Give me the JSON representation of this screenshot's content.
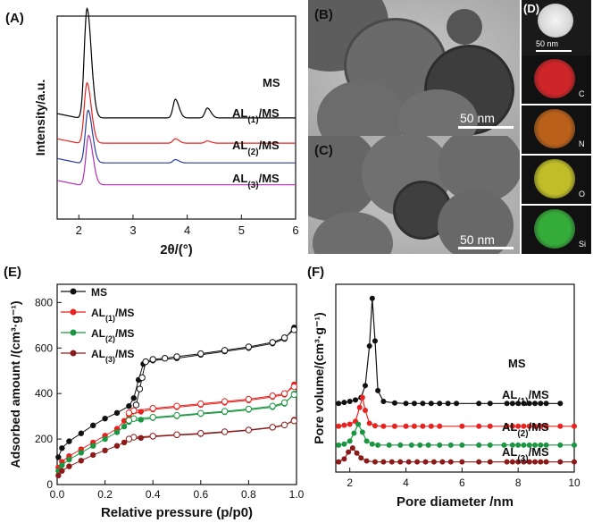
{
  "panels": {
    "A": "(A)",
    "B": "(B)",
    "C": "(C)",
    "D": "(D)",
    "E": "(E)",
    "F": "(F)"
  },
  "tem": {
    "b_scale": "50 nm",
    "c_scale": "50 nm",
    "d_scale": "50 nm",
    "element_labels": [
      "C",
      "N",
      "O",
      "Si"
    ],
    "map_colors": [
      "#d8262a",
      "#c2651a",
      "#c9c62a",
      "#37b33c"
    ]
  },
  "chart_data": [
    {
      "type": "line",
      "panel": "A",
      "xlabel": "2θ/(°)",
      "ylabel": "Intensity/a.u.",
      "xlim": [
        1.6,
        6.0
      ],
      "xticks": [
        2,
        3,
        4,
        5,
        6
      ],
      "series": [
        {
          "name": "MS",
          "color": "#000000",
          "baseline": 0.35,
          "peaks": [
            [
              2.15,
              1.0
            ],
            [
              3.78,
              0.17
            ],
            [
              4.37,
              0.09
            ]
          ]
        },
        {
          "name": "AL(1)/MS",
          "color": "#e8231f",
          "baseline": 0.12,
          "peaks": [
            [
              2.15,
              0.55
            ],
            [
              3.78,
              0.04
            ],
            [
              4.37,
              0.02
            ]
          ]
        },
        {
          "name": "AL(2)/MS",
          "color": "#2b3f9e",
          "baseline": -0.06,
          "peaks": [
            [
              2.17,
              0.48
            ],
            [
              3.78,
              0.03
            ]
          ]
        },
        {
          "name": "AL(3)/MS",
          "color": "#b32fb5",
          "baseline": -0.26,
          "peaks": [
            [
              2.18,
              0.45
            ]
          ]
        }
      ]
    },
    {
      "type": "scatter",
      "panel": "E",
      "xlabel": "Relative pressure (p/p0)",
      "ylabel": "Adsorbed amount /(cm³·g⁻¹)",
      "xlim": [
        0,
        1.0
      ],
      "ylim": [
        0,
        880
      ],
      "xticks": [
        0.0,
        0.2,
        0.4,
        0.6,
        0.8,
        1.0
      ],
      "yticks": [
        0,
        200,
        400,
        600,
        800
      ],
      "legend": "top-left",
      "series": [
        {
          "name": "MS",
          "color": "#111111",
          "adsorption": [
            [
              0.005,
              120
            ],
            [
              0.02,
              160
            ],
            [
              0.05,
              190
            ],
            [
              0.1,
              225
            ],
            [
              0.15,
              260
            ],
            [
              0.2,
              290
            ],
            [
              0.25,
              315
            ],
            [
              0.3,
              345
            ],
            [
              0.32,
              380
            ],
            [
              0.34,
              460
            ],
            [
              0.36,
              530
            ],
            [
              0.4,
              545
            ],
            [
              0.5,
              555
            ],
            [
              0.6,
              570
            ],
            [
              0.7,
              585
            ],
            [
              0.8,
              600
            ],
            [
              0.9,
              620
            ],
            [
              0.95,
              640
            ],
            [
              0.99,
              690
            ]
          ],
          "desorption": [
            [
              0.99,
              680
            ],
            [
              0.95,
              645
            ],
            [
              0.9,
              625
            ],
            [
              0.8,
              605
            ],
            [
              0.7,
              590
            ],
            [
              0.6,
              575
            ],
            [
              0.5,
              562
            ],
            [
              0.45,
              555
            ],
            [
              0.4,
              550
            ],
            [
              0.37,
              540
            ],
            [
              0.355,
              470
            ],
            [
              0.345,
              420
            ],
            [
              0.33,
              350
            ]
          ]
        },
        {
          "name": "AL(1)/MS",
          "color": "#e8231f",
          "adsorption": [
            [
              0.005,
              75
            ],
            [
              0.02,
              100
            ],
            [
              0.05,
              125
            ],
            [
              0.1,
              155
            ],
            [
              0.15,
              185
            ],
            [
              0.2,
              215
            ],
            [
              0.25,
              245
            ],
            [
              0.28,
              280
            ],
            [
              0.3,
              305
            ],
            [
              0.35,
              320
            ],
            [
              0.4,
              330
            ],
            [
              0.5,
              340
            ],
            [
              0.6,
              350
            ],
            [
              0.7,
              360
            ],
            [
              0.8,
              370
            ],
            [
              0.9,
              385
            ],
            [
              0.95,
              395
            ],
            [
              0.99,
              440
            ]
          ],
          "desorption": [
            [
              0.99,
              430
            ],
            [
              0.95,
              400
            ],
            [
              0.9,
              390
            ],
            [
              0.8,
              375
            ],
            [
              0.7,
              365
            ],
            [
              0.6,
              355
            ],
            [
              0.5,
              345
            ],
            [
              0.4,
              335
            ],
            [
              0.32,
              325
            ],
            [
              0.3,
              315
            ]
          ]
        },
        {
          "name": "AL(2)/MS",
          "color": "#1a9641",
          "adsorption": [
            [
              0.005,
              60
            ],
            [
              0.02,
              85
            ],
            [
              0.05,
              110
            ],
            [
              0.1,
              140
            ],
            [
              0.15,
              170
            ],
            [
              0.2,
              200
            ],
            [
              0.25,
              230
            ],
            [
              0.28,
              255
            ],
            [
              0.3,
              275
            ],
            [
              0.35,
              285
            ],
            [
              0.4,
              292
            ],
            [
              0.5,
              300
            ],
            [
              0.6,
              310
            ],
            [
              0.7,
              318
            ],
            [
              0.8,
              328
            ],
            [
              0.9,
              340
            ],
            [
              0.95,
              355
            ],
            [
              0.99,
              400
            ]
          ],
          "desorption": [
            [
              0.99,
              395
            ],
            [
              0.95,
              360
            ],
            [
              0.9,
              345
            ],
            [
              0.8,
              332
            ],
            [
              0.7,
              322
            ],
            [
              0.6,
              313
            ],
            [
              0.5,
              304
            ],
            [
              0.4,
              296
            ],
            [
              0.32,
              290
            ],
            [
              0.3,
              282
            ]
          ]
        },
        {
          "name": "AL(3)/MS",
          "color": "#8b1a1a",
          "adsorption": [
            [
              0.005,
              40
            ],
            [
              0.02,
              60
            ],
            [
              0.05,
              80
            ],
            [
              0.1,
              105
            ],
            [
              0.15,
              130
            ],
            [
              0.2,
              150
            ],
            [
              0.25,
              170
            ],
            [
              0.28,
              185
            ],
            [
              0.3,
              198
            ],
            [
              0.35,
              205
            ],
            [
              0.4,
              210
            ],
            [
              0.5,
              217
            ],
            [
              0.6,
              222
            ],
            [
              0.7,
              230
            ],
            [
              0.8,
              238
            ],
            [
              0.9,
              250
            ],
            [
              0.95,
              260
            ],
            [
              0.99,
              285
            ]
          ],
          "desorption": [
            [
              0.99,
              280
            ],
            [
              0.95,
              262
            ],
            [
              0.9,
              252
            ],
            [
              0.8,
              240
            ],
            [
              0.7,
              232
            ],
            [
              0.6,
              225
            ],
            [
              0.5,
              219
            ],
            [
              0.4,
              213
            ],
            [
              0.32,
              208
            ],
            [
              0.3,
              200
            ]
          ]
        }
      ]
    },
    {
      "type": "line",
      "panel": "F",
      "xlabel": "Pore diameter /nm",
      "ylabel": "Pore volume/(cm³·g⁻¹)",
      "xlim": [
        1.5,
        10
      ],
      "xticks": [
        2,
        4,
        6,
        8,
        10
      ],
      "series": [
        {
          "name": "MS",
          "color": "#111111",
          "baseline": 0.62,
          "points": [
            [
              1.6,
              0.62
            ],
            [
              1.8,
              0.63
            ],
            [
              2.0,
              0.64
            ],
            [
              2.2,
              0.655
            ],
            [
              2.4,
              0.68
            ],
            [
              2.55,
              0.8
            ],
            [
              2.7,
              1.2
            ],
            [
              2.8,
              1.68
            ],
            [
              2.9,
              1.25
            ],
            [
              3.0,
              0.75
            ],
            [
              3.2,
              0.64
            ],
            [
              3.6,
              0.625
            ],
            [
              4.0,
              0.62
            ],
            [
              4.6,
              0.62
            ],
            [
              5.5,
              0.62
            ],
            [
              6.5,
              0.62
            ],
            [
              7.5,
              0.62
            ],
            [
              8.5,
              0.62
            ],
            [
              9.5,
              0.62
            ]
          ],
          "markers": [
            1.6,
            1.8,
            2.0,
            2.2,
            2.4,
            2.55,
            2.7,
            2.8,
            2.9,
            3.0,
            3.2,
            3.6,
            4.0,
            4.3,
            4.6,
            4.9,
            5.2,
            5.5,
            5.8,
            6.6,
            7.0,
            7.6,
            7.8,
            8.0,
            8.2,
            8.4,
            8.6,
            8.8,
            9.0,
            9.5
          ]
        },
        {
          "name": "AL(1)/MS",
          "color": "#e8231f",
          "baseline": 0.39,
          "points": [
            [
              1.6,
              0.39
            ],
            [
              1.8,
              0.4
            ],
            [
              2.0,
              0.41
            ],
            [
              2.2,
              0.44
            ],
            [
              2.35,
              0.58
            ],
            [
              2.45,
              0.68
            ],
            [
              2.55,
              0.55
            ],
            [
              2.7,
              0.42
            ],
            [
              2.9,
              0.395
            ],
            [
              3.2,
              0.39
            ],
            [
              4.0,
              0.39
            ],
            [
              5.0,
              0.39
            ],
            [
              6.0,
              0.39
            ],
            [
              7.0,
              0.39
            ],
            [
              8.0,
              0.39
            ],
            [
              9.0,
              0.39
            ],
            [
              10,
              0.39
            ]
          ],
          "markers": [
            1.6,
            1.8,
            2.0,
            2.2,
            2.35,
            2.45,
            2.55,
            2.7,
            2.9,
            3.2,
            3.6,
            4.0,
            4.3,
            4.6,
            4.9,
            5.2,
            6.0,
            6.6,
            7.0,
            7.6,
            7.8,
            8.0,
            8.2,
            8.4,
            8.6,
            8.8,
            9.0,
            9.5,
            10
          ]
        },
        {
          "name": "AL(2)/MS",
          "color": "#1a9641",
          "baseline": 0.2,
          "points": [
            [
              1.6,
              0.2
            ],
            [
              1.8,
              0.21
            ],
            [
              2.0,
              0.24
            ],
            [
              2.15,
              0.32
            ],
            [
              2.3,
              0.41
            ],
            [
              2.45,
              0.33
            ],
            [
              2.6,
              0.24
            ],
            [
              2.8,
              0.21
            ],
            [
              3.0,
              0.2
            ],
            [
              4.0,
              0.2
            ],
            [
              5.0,
              0.2
            ],
            [
              6.0,
              0.2
            ],
            [
              7.0,
              0.2
            ],
            [
              8.0,
              0.2
            ],
            [
              9.0,
              0.2
            ],
            [
              10,
              0.2
            ]
          ],
          "markers": [
            1.6,
            1.8,
            2.0,
            2.15,
            2.3,
            2.45,
            2.6,
            2.8,
            3.0,
            3.4,
            3.8,
            4.2,
            4.5,
            4.8,
            5.2,
            5.6,
            6.0,
            6.6,
            7.0,
            7.5,
            7.8,
            8.0,
            8.2,
            8.4,
            8.6,
            8.8,
            9.0,
            9.5,
            10
          ]
        },
        {
          "name": "AL(3)/MS",
          "color": "#8b1a1a",
          "baseline": 0.03,
          "points": [
            [
              1.6,
              0.03
            ],
            [
              1.8,
              0.06
            ],
            [
              1.95,
              0.13
            ],
            [
              2.1,
              0.17
            ],
            [
              2.25,
              0.12
            ],
            [
              2.4,
              0.07
            ],
            [
              2.6,
              0.04
            ],
            [
              2.9,
              0.03
            ],
            [
              3.5,
              0.03
            ],
            [
              4.5,
              0.03
            ],
            [
              5.5,
              0.03
            ],
            [
              6.5,
              0.03
            ],
            [
              7.5,
              0.03
            ],
            [
              8.5,
              0.03
            ],
            [
              10,
              0.03
            ]
          ],
          "markers": [
            1.6,
            1.8,
            1.95,
            2.1,
            2.25,
            2.4,
            2.6,
            2.9,
            3.2,
            3.5,
            3.8,
            4.1,
            4.4,
            4.7,
            5.0,
            5.3,
            5.6,
            6.0,
            6.6,
            7.0,
            7.6,
            7.8,
            8.0,
            8.2,
            8.4,
            8.6,
            8.8,
            9.0,
            9.5,
            10
          ]
        }
      ]
    }
  ]
}
